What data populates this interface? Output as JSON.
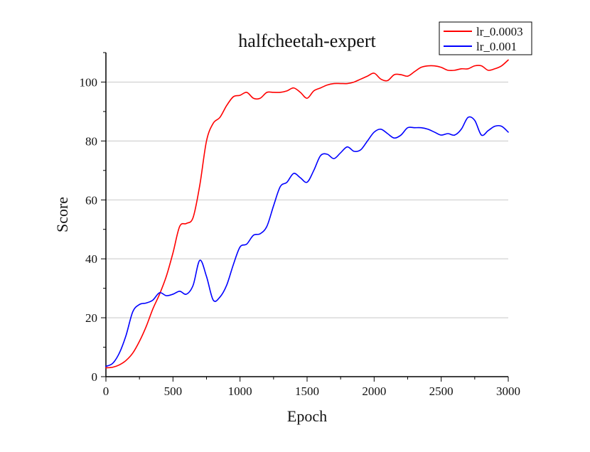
{
  "chart_data": {
    "type": "line",
    "title": "halfcheetah-expert",
    "xlabel": "Epoch",
    "ylabel": "Score",
    "xlim": [
      0,
      3000
    ],
    "ylim": [
      0,
      110
    ],
    "xticks": [
      0,
      500,
      1000,
      1500,
      2000,
      2500,
      3000
    ],
    "yticks": [
      0,
      20,
      40,
      60,
      80,
      100
    ],
    "grid": true,
    "legend_position": "top-right",
    "colors": {
      "lr_0.0003": "#ff0000",
      "lr_0.001": "#0000ff",
      "grid": "#c8c8c8",
      "axis": "#000000"
    },
    "series": [
      {
        "name": "lr_0.0003",
        "x": [
          0,
          50,
          100,
          150,
          200,
          250,
          300,
          350,
          400,
          450,
          500,
          550,
          600,
          650,
          700,
          750,
          800,
          850,
          900,
          950,
          1000,
          1050,
          1100,
          1150,
          1200,
          1250,
          1300,
          1350,
          1400,
          1450,
          1500,
          1550,
          1600,
          1650,
          1700,
          1750,
          1800,
          1850,
          1900,
          1950,
          2000,
          2050,
          2100,
          2150,
          2200,
          2250,
          2300,
          2350,
          2400,
          2450,
          2500,
          2550,
          2600,
          2650,
          2700,
          2750,
          2800,
          2850,
          2900,
          2950,
          3000
        ],
        "values": [
          3,
          3.2,
          4,
          5.5,
          8,
          12,
          17,
          23,
          28,
          34,
          42,
          51,
          52,
          54,
          65,
          80,
          86,
          88,
          92,
          95,
          95.5,
          96.5,
          94.5,
          94.5,
          96.5,
          96.5,
          96.5,
          97,
          98,
          96.5,
          94.5,
          97,
          98,
          99,
          99.5,
          99.5,
          99.5,
          100,
          101,
          102,
          103,
          101,
          100.5,
          102.5,
          102.5,
          102,
          103.5,
          105,
          105.5,
          105.5,
          105,
          104,
          104,
          104.5,
          104.5,
          105.5,
          105.5,
          104,
          104.5,
          105.5,
          107.5
        ]
      },
      {
        "name": "lr_0.001",
        "x": [
          0,
          50,
          100,
          150,
          200,
          250,
          300,
          350,
          400,
          450,
          500,
          550,
          600,
          650,
          700,
          750,
          800,
          850,
          900,
          950,
          1000,
          1050,
          1100,
          1150,
          1200,
          1250,
          1300,
          1350,
          1400,
          1450,
          1500,
          1550,
          1600,
          1650,
          1700,
          1750,
          1800,
          1850,
          1900,
          1950,
          2000,
          2050,
          2100,
          2150,
          2200,
          2250,
          2300,
          2350,
          2400,
          2450,
          2500,
          2550,
          2600,
          2650,
          2700,
          2750,
          2800,
          2850,
          2900,
          2950,
          3000
        ],
        "values": [
          3.5,
          4.5,
          8,
          14,
          22,
          24.5,
          25,
          26,
          28.5,
          27.5,
          28,
          29,
          28,
          31,
          39.5,
          34,
          26,
          27,
          31,
          38,
          44,
          45,
          48,
          48.5,
          51,
          58,
          64.5,
          66,
          69,
          67.5,
          66,
          70,
          75,
          75.5,
          74,
          76,
          78,
          76.5,
          77,
          80,
          83,
          84,
          82.5,
          81,
          82,
          84.5,
          84.5,
          84.5,
          84,
          83,
          82,
          82.5,
          82,
          84,
          88,
          87,
          82,
          83.5,
          85,
          85,
          83
        ]
      }
    ]
  }
}
